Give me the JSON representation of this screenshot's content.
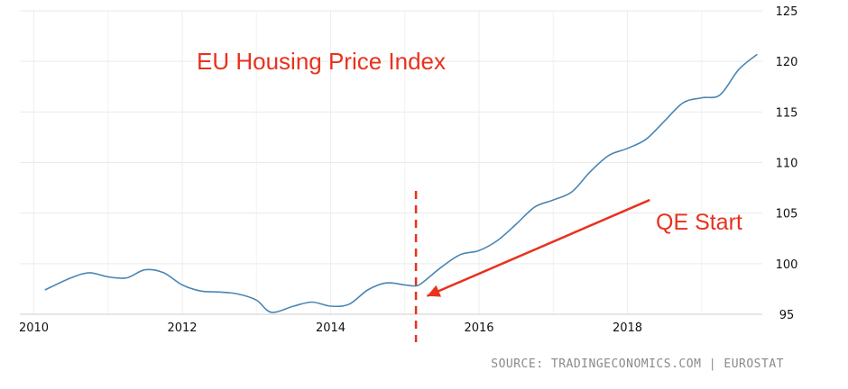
{
  "chart_data": {
    "type": "line",
    "xlim": [
      2010,
      2019.8
    ],
    "ylim": [
      95,
      125
    ],
    "x_ticks": [
      "2010",
      "2012",
      "2014",
      "2016",
      "2018"
    ],
    "y_ticks": [
      "95",
      "100",
      "105",
      "110",
      "115",
      "120",
      "125"
    ],
    "grid": true,
    "series": [
      {
        "color": "#4a86b5",
        "points": [
          [
            2010.15,
            97.4
          ],
          [
            2010.5,
            98.6
          ],
          [
            2010.75,
            99.1
          ],
          [
            2011.0,
            98.7
          ],
          [
            2011.25,
            98.6
          ],
          [
            2011.5,
            99.4
          ],
          [
            2011.75,
            99.1
          ],
          [
            2012.0,
            97.9
          ],
          [
            2012.25,
            97.3
          ],
          [
            2012.5,
            97.2
          ],
          [
            2012.75,
            97.0
          ],
          [
            2013.0,
            96.4
          ],
          [
            2013.2,
            95.2
          ],
          [
            2013.5,
            95.8
          ],
          [
            2013.75,
            96.2
          ],
          [
            2014.0,
            95.8
          ],
          [
            2014.25,
            96.0
          ],
          [
            2014.5,
            97.4
          ],
          [
            2014.75,
            98.1
          ],
          [
            2015.0,
            97.9
          ],
          [
            2015.15,
            97.8
          ],
          [
            2015.25,
            98.2
          ],
          [
            2015.5,
            99.7
          ],
          [
            2015.75,
            100.9
          ],
          [
            2016.0,
            101.3
          ],
          [
            2016.25,
            102.3
          ],
          [
            2016.5,
            103.9
          ],
          [
            2016.75,
            105.6
          ],
          [
            2017.0,
            106.3
          ],
          [
            2017.25,
            107.1
          ],
          [
            2017.5,
            109.1
          ],
          [
            2017.75,
            110.7
          ],
          [
            2018.0,
            111.4
          ],
          [
            2018.25,
            112.3
          ],
          [
            2018.5,
            114.1
          ],
          [
            2018.75,
            115.9
          ],
          [
            2019.0,
            116.4
          ],
          [
            2019.25,
            116.7
          ],
          [
            2019.5,
            119.2
          ],
          [
            2019.75,
            120.7
          ]
        ]
      }
    ],
    "vline": {
      "x": 2015.15,
      "color": "#e8321e",
      "style": "dashed"
    },
    "annotations": [
      {
        "id": "title",
        "text": "EU Housing Price Index",
        "color": "#e8321e"
      },
      {
        "id": "qe",
        "text": "QE Start",
        "color": "#e8321e"
      }
    ],
    "arrow": {
      "from": [
        2018.3,
        106.3
      ],
      "to": [
        2015.3,
        96.8
      ],
      "color": "#e8321e"
    },
    "source": "SOURCE: TRADINGECONOMICS.COM | EUROSTAT"
  }
}
